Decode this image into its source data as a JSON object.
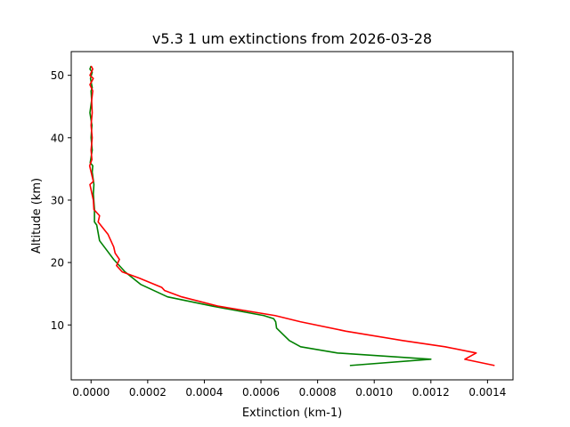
{
  "chart_data": {
    "type": "line",
    "title": "v5.3 1 um extinctions from 2026-03-28",
    "xlabel": "Extinction (km-1)",
    "ylabel": "Altitude (km)",
    "xlim": [
      -7e-05,
      0.00149
    ],
    "ylim": [
      1.2,
      53.8
    ],
    "x_ticks": [
      0.0,
      0.0002,
      0.0004,
      0.0006,
      0.0008,
      0.001,
      0.0012,
      0.0014
    ],
    "x_tick_labels": [
      "0.0000",
      "0.0002",
      "0.0004",
      "0.0006",
      "0.0008",
      "0.0010",
      "0.0012",
      "0.0014"
    ],
    "y_ticks": [
      10,
      20,
      30,
      40,
      50
    ],
    "y_tick_labels": [
      "10",
      "20",
      "30",
      "40",
      "50"
    ],
    "grid": false,
    "series": [
      {
        "color": "#008000",
        "x": [
          0.000914,
          0.0012,
          0.00087,
          0.00074,
          0.0007,
          0.000655,
          0.000652,
          0.000645,
          0.00061,
          0.00043,
          0.00027,
          0.000175,
          0.00012,
          8e-05,
          5.5e-05,
          3e-05,
          2e-05,
          1.2e-05,
          1.2e-05,
          8e-06,
          1e-05,
          4e-06,
          6e-06,
          -3e-06,
          4e-06,
          0.0,
          3e-06,
          -4e-06,
          2e-06,
          0.0,
          4e-06,
          -2e-06,
          4e-06,
          -4e-06,
          0.0
        ],
        "y": [
          3.5,
          4.5,
          5.5,
          6.5,
          7.5,
          9.5,
          10.5,
          11.0,
          11.5,
          13.0,
          14.5,
          16.5,
          18.5,
          20.5,
          22.0,
          23.5,
          26.0,
          26.5,
          28.5,
          31.0,
          32.5,
          34.5,
          35.5,
          36.0,
          38.0,
          40.0,
          42.0,
          44.0,
          46.0,
          47.5,
          48.0,
          49.5,
          50.5,
          51.0,
          51.5
        ]
      },
      {
        "color": "#ff0000",
        "x": [
          0.001425,
          0.00132,
          0.00136,
          0.00125,
          0.0011,
          0.0009,
          0.00074,
          0.00065,
          0.00045,
          0.00032,
          0.00026,
          0.00025,
          0.00017,
          0.00011,
          9e-05,
          0.0001,
          8.5e-05,
          8e-05,
          6e-05,
          2.5e-05,
          3e-05,
          1e-05,
          8e-06,
          -4e-06,
          8e-06,
          -5e-06,
          3e-06,
          0.0,
          4e-06,
          0.0,
          4e-06,
          2e-06,
          6e-06,
          -4e-06,
          8e-06,
          -4e-06,
          6e-06,
          0.0
        ],
        "y": [
          3.5,
          4.5,
          5.5,
          6.5,
          7.5,
          9.0,
          10.5,
          11.5,
          13.0,
          14.5,
          15.5,
          16.0,
          17.5,
          18.5,
          19.5,
          20.5,
          21.5,
          22.5,
          24.5,
          26.5,
          27.5,
          28.5,
          30.0,
          32.5,
          33.0,
          35.5,
          36.5,
          38.0,
          40.0,
          42.0,
          44.0,
          46.0,
          47.5,
          48.5,
          49.5,
          50.0,
          51.0,
          51.5
        ]
      }
    ]
  }
}
